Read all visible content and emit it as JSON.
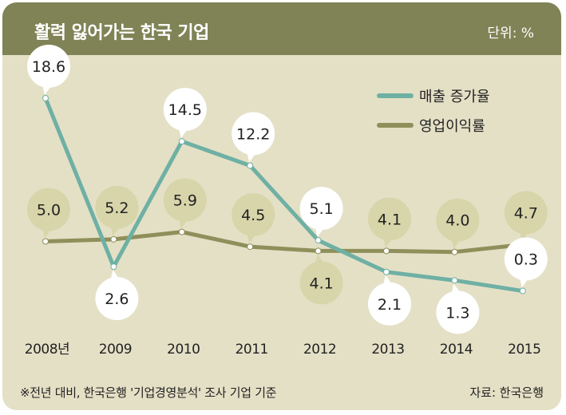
{
  "header": {
    "title": "활력 잃어가는 한국 기업",
    "unit": "단위: %"
  },
  "footer": {
    "note": "※전년 대비, 한국은행 '기업경영분석' 조사 기업 기준",
    "source": "자료: 한국은행"
  },
  "colors": {
    "header_bg": "#7f8356",
    "panel_bg": "#e4e0c6",
    "sales_line": "#6fb0a4",
    "profit_line": "#8e8f5a"
  },
  "chart_data": {
    "type": "line",
    "title": "활력 잃어가는 한국 기업",
    "categories": [
      "2008년",
      "2009",
      "2010",
      "2011",
      "2012",
      "2013",
      "2014",
      "2015"
    ],
    "ylim": [
      0,
      20
    ],
    "grid": false,
    "legend_position": "top-right",
    "series": [
      {
        "name": "매출 증가율",
        "color": "#6fb0a4",
        "values": [
          18.6,
          2.6,
          14.5,
          12.2,
          5.1,
          2.1,
          1.3,
          0.3
        ],
        "labels": [
          "18.6",
          "2.6",
          "14.5",
          "12.2",
          "5.1",
          "2.1",
          "1.3",
          "0.3"
        ],
        "label_side": [
          "above",
          "below",
          "above",
          "above",
          "above",
          "below",
          "below",
          "above"
        ]
      },
      {
        "name": "영업이익률",
        "color": "#8e8f5a",
        "values": [
          5.0,
          5.2,
          5.9,
          4.5,
          4.1,
          4.1,
          4.0,
          4.7
        ],
        "labels": [
          "5.0",
          "5.2",
          "5.9",
          "4.5",
          "4.1",
          "4.1",
          "4.0",
          "4.7"
        ],
        "label_side": [
          "above",
          "above",
          "above",
          "above",
          "below",
          "above",
          "above",
          "above"
        ]
      }
    ]
  }
}
